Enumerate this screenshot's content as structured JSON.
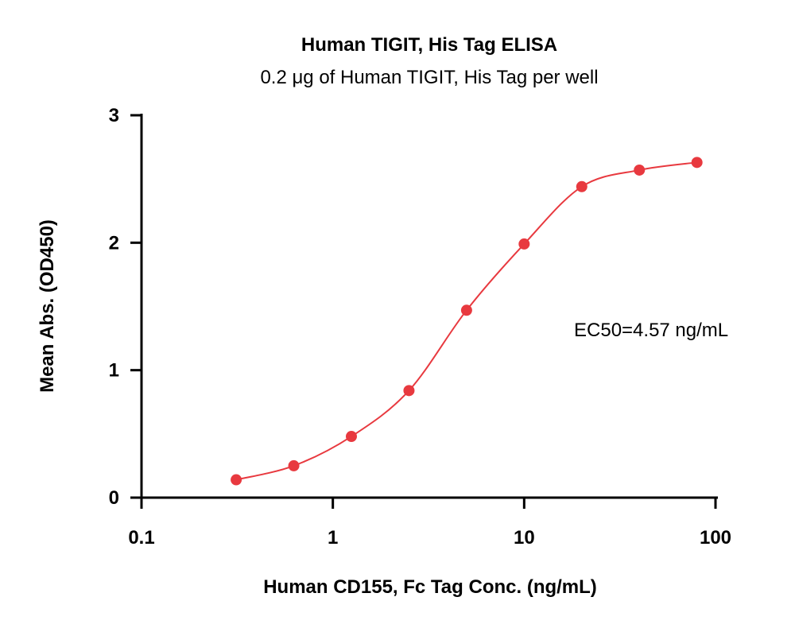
{
  "chart_data": {
    "type": "scatter",
    "title": "Human TIGIT, His Tag ELISA",
    "subtitle": "0.2 μg of Human TIGIT, His Tag per well",
    "xlabel": "Human CD155, Fc Tag Conc. (ng/mL)",
    "ylabel": "Mean Abs. (OD450)",
    "xscale": "log",
    "xlim": [
      0.1,
      100
    ],
    "ylim": [
      0,
      3
    ],
    "x_ticks": [
      0.1,
      1,
      10,
      100
    ],
    "x_tick_labels": [
      "0.1",
      "1",
      "10",
      "100"
    ],
    "y_ticks": [
      0,
      1,
      2,
      3
    ],
    "y_tick_labels": [
      "0",
      "1",
      "2",
      "3"
    ],
    "grid": false,
    "series": [
      {
        "color": "#e8393f",
        "marker": "circle",
        "fit": "sigmoidal",
        "x": [
          0.3125,
          0.625,
          1.25,
          2.5,
          5,
          10,
          20,
          40,
          80
        ],
        "y": [
          0.14,
          0.25,
          0.48,
          0.84,
          1.47,
          1.99,
          2.44,
          2.57,
          2.63
        ]
      }
    ],
    "annotations": [
      {
        "text": "EC50=4.57 ng/mL"
      }
    ]
  }
}
